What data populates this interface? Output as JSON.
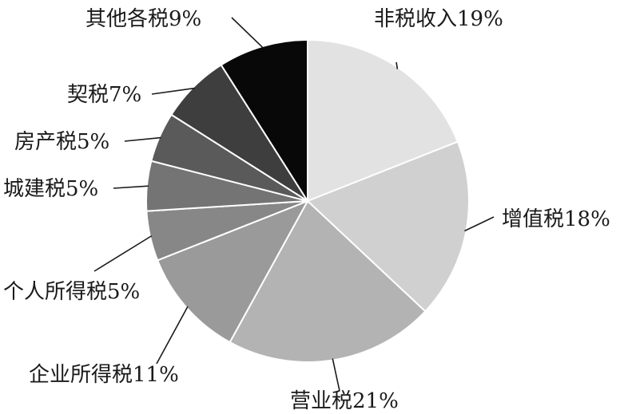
{
  "chart_data": {
    "type": "pie",
    "title": "",
    "legend": "none",
    "start": "12 o'clock, clockwise",
    "slices": [
      {
        "label": "非税收入",
        "value": 19,
        "display": "非税收入19%",
        "color": "#e2e2e2"
      },
      {
        "label": "增值税",
        "value": 18,
        "display": "增值税18%",
        "color": "#d0d0d0"
      },
      {
        "label": "营业税",
        "value": 21,
        "display": "营业税21%",
        "color": "#b3b3b3"
      },
      {
        "label": "企业所得税",
        "value": 11,
        "display": "企业所得税11%",
        "color": "#9a9a9a"
      },
      {
        "label": "个人所得税",
        "value": 5,
        "display": "个人所得税5%",
        "color": "#878787"
      },
      {
        "label": "城建税",
        "value": 5,
        "display": "城建税5%",
        "color": "#747474"
      },
      {
        "label": "房产税",
        "value": 5,
        "display": "房产税5%",
        "color": "#5a5a5a"
      },
      {
        "label": "契税",
        "value": 7,
        "display": "契税7%",
        "color": "#3e3e3e"
      },
      {
        "label": "其他各税",
        "value": 9,
        "display": "其他各税9%",
        "color": "#080808"
      }
    ]
  }
}
